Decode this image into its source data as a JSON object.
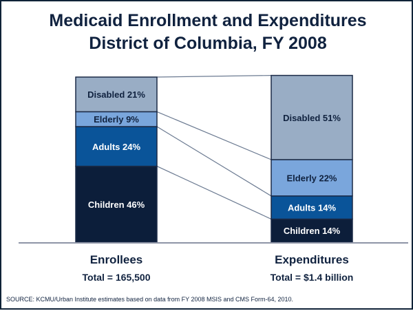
{
  "chart_data": {
    "type": "bar",
    "stacked": true,
    "normalized_percent": true,
    "title": "Medicaid Enrollment and Expenditures",
    "subtitle": "District of Columbia, FY 2008",
    "categories": [
      "Enrollees",
      "Expenditures"
    ],
    "category_totals": [
      "Total = 165,500",
      "Total = $1.4 billion"
    ],
    "series": [
      {
        "name": "Children",
        "values": [
          46,
          14
        ],
        "color": "#0c1e3a",
        "text_color": "#ffffff"
      },
      {
        "name": "Adults",
        "values": [
          24,
          14
        ],
        "color": "#0a5499",
        "text_color": "#ffffff"
      },
      {
        "name": "Elderly",
        "values": [
          9,
          22
        ],
        "color": "#7aa6dc",
        "text_color": "#10223f"
      },
      {
        "name": "Disabled",
        "values": [
          21,
          51
        ],
        "color": "#99adc5",
        "text_color": "#10223f"
      }
    ],
    "connector_lines": true,
    "ylim": [
      0,
      100
    ],
    "xlabel": "",
    "ylabel": "",
    "grid": false,
    "legend": "none"
  },
  "source": "SOURCE:  KCMU/Urban Institute estimates based on data from FY 2008 MSIS and CMS Form-64,  2010."
}
